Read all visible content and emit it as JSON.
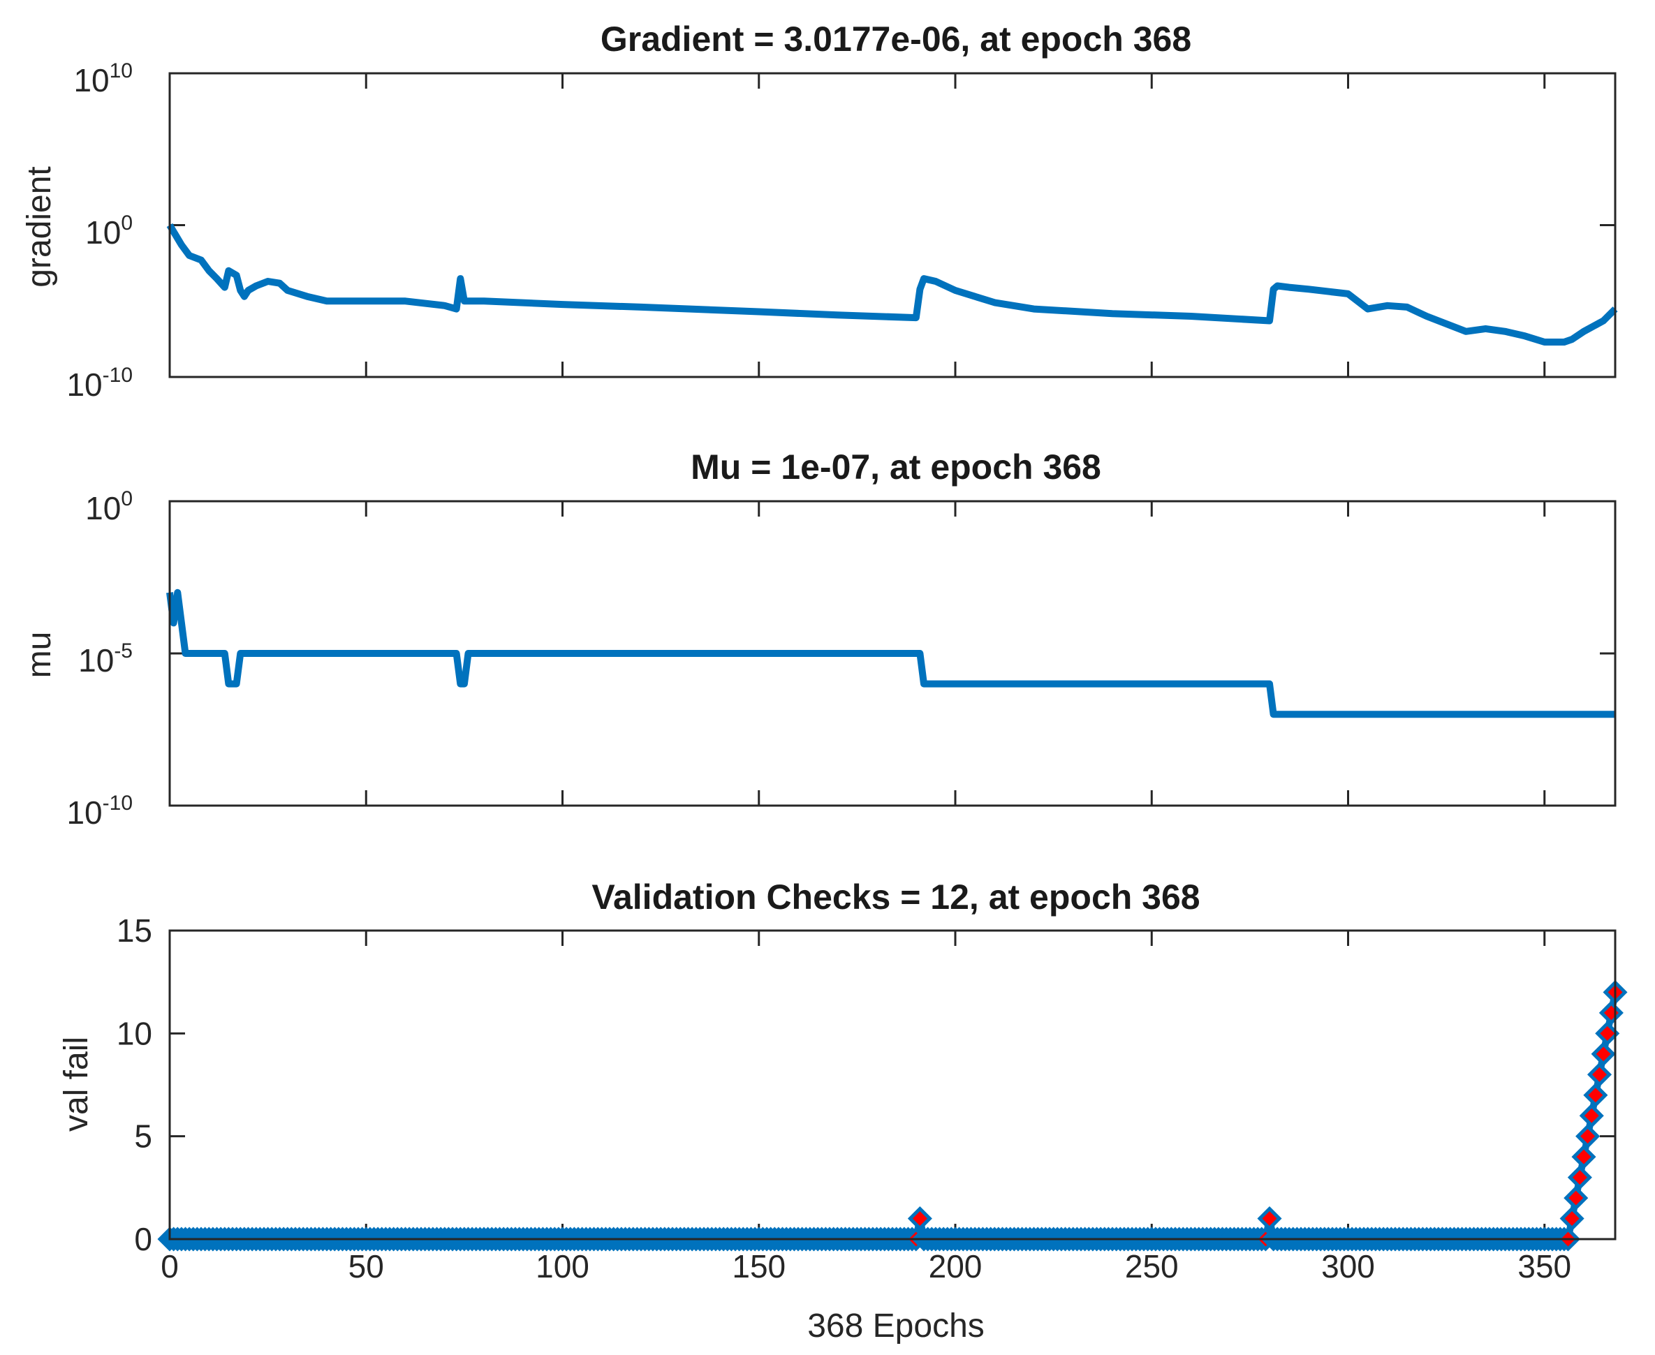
{
  "chart_data": [
    {
      "type": "line",
      "title": "Gradient = 3.0177e-06, at epoch 368",
      "xlabel": "",
      "ylabel": "gradient",
      "xlim": [
        0,
        368
      ],
      "xscale": "linear",
      "yscale": "log",
      "ylim": [
        1e-10,
        10000000000.0
      ],
      "yticks": [
        {
          "base": "10",
          "exp": "-10"
        },
        {
          "base": "10",
          "exp": "0"
        },
        {
          "base": "10",
          "exp": "10"
        }
      ],
      "color": "#0072BD",
      "series": [
        {
          "x": [
            0,
            3,
            5,
            8,
            10,
            12,
            14,
            15,
            17,
            18,
            19,
            20,
            22,
            25,
            28,
            30,
            35,
            40,
            50,
            60,
            70,
            73,
            74,
            75,
            76,
            77,
            80,
            100,
            120,
            150,
            170,
            190,
            191,
            192,
            195,
            200,
            210,
            220,
            240,
            260,
            280,
            281,
            282,
            285,
            290,
            300,
            305,
            310,
            315,
            320,
            330,
            335,
            340,
            345,
            350,
            355,
            357,
            360,
            365,
            368
          ],
          "y": [
            1,
            0.05,
            0.01,
            0.005,
            0.001,
            0.0003,
            8e-05,
            0.001,
            0.0005,
            5e-05,
            2e-05,
            5e-05,
            0.0001,
            0.0002,
            0.00015,
            5e-05,
            2e-05,
            1e-05,
            1e-05,
            1e-05,
            5e-06,
            3e-06,
            0.0003,
            1e-05,
            1e-05,
            1e-05,
            1e-05,
            6e-06,
            4e-06,
            2e-06,
            1.2e-06,
            8e-07,
            6e-05,
            0.0003,
            0.0002,
            5e-05,
            8e-06,
            3e-06,
            1.5e-06,
            1e-06,
            5e-07,
            6e-05,
            0.0001,
            8e-05,
            6e-05,
            3e-05,
            3e-06,
            5e-06,
            4e-06,
            1e-06,
            1e-07,
            1.5e-07,
            1e-07,
            5e-08,
            2e-08,
            2e-08,
            3e-08,
            1e-07,
            5e-07,
            3.0177e-06
          ]
        }
      ]
    },
    {
      "type": "line",
      "title": "Mu = 1e-07, at epoch 368",
      "xlabel": "",
      "ylabel": "mu",
      "xlim": [
        0,
        368
      ],
      "xscale": "linear",
      "yscale": "log",
      "ylim": [
        1e-10,
        1
      ],
      "yticks": [
        {
          "base": "10",
          "exp": "-10"
        },
        {
          "base": "10",
          "exp": "-5"
        },
        {
          "base": "10",
          "exp": "0"
        }
      ],
      "color": "#0072BD",
      "series": [
        {
          "x": [
            0,
            1,
            2,
            3,
            4,
            14,
            15,
            16,
            17,
            18,
            73,
            74,
            75,
            76,
            191,
            192,
            280,
            281,
            368
          ],
          "y": [
            0.001,
            0.0001,
            0.001,
            0.0001,
            1e-05,
            1e-05,
            1e-06,
            1e-06,
            1e-06,
            1e-05,
            1e-05,
            1e-06,
            1e-06,
            1e-05,
            1e-05,
            1e-06,
            1e-06,
            1e-07,
            1e-07
          ]
        }
      ]
    },
    {
      "type": "line",
      "title": "Validation Checks = 12, at epoch 368",
      "xlabel": "368 Epochs",
      "ylabel": "val fail",
      "xlim": [
        0,
        368
      ],
      "xscale": "linear",
      "ylim": [
        0,
        15
      ],
      "yticks": [
        "0",
        "5",
        "10",
        "15"
      ],
      "xticks": [
        "0",
        "50",
        "100",
        "150",
        "200",
        "250",
        "300",
        "350"
      ],
      "color": "#0072BD",
      "marker": "diamond",
      "marker_fill": "#FF0000",
      "series": [
        {
          "x": [
            0,
            190,
            191,
            192,
            279,
            280,
            281,
            356,
            357,
            358,
            359,
            360,
            361,
            362,
            363,
            364,
            365,
            366,
            367,
            368
          ],
          "y": [
            0,
            0,
            1,
            0,
            0,
            1,
            0,
            0,
            1,
            2,
            3,
            4,
            5,
            6,
            7,
            8,
            9,
            10,
            11,
            12
          ]
        }
      ]
    }
  ]
}
